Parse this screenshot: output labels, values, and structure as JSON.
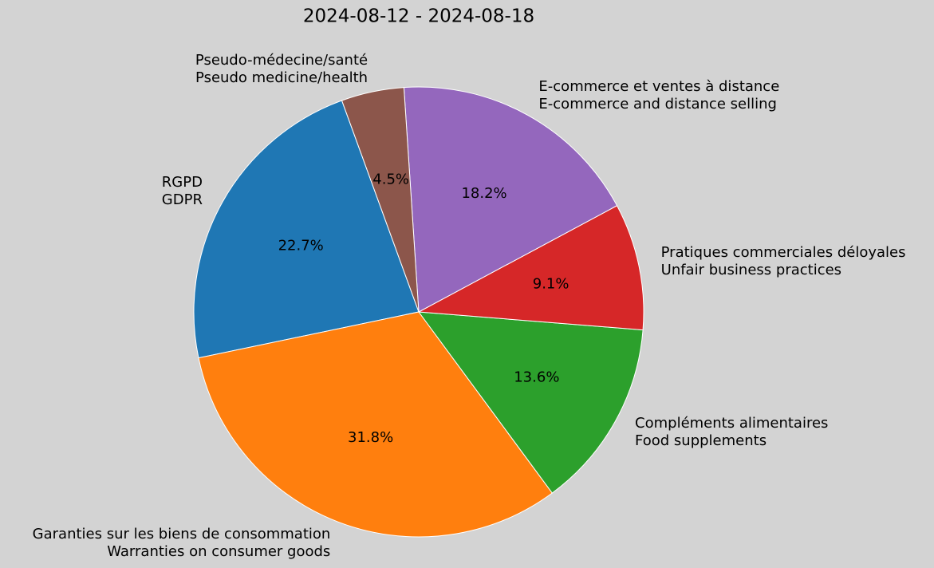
{
  "chart_data": {
    "type": "pie",
    "title": "2024-08-12 - 2024-08-18",
    "categories": [
      "RGPD\nGDPR",
      "Garanties sur les biens de consommation\nWarranties on consumer goods",
      "Compléments alimentaires\nFood supplements",
      "Pratiques commerciales déloyales\nUnfair business practices",
      "E-commerce et ventes à distance\nE-commerce and distance selling",
      "Pseudo-médecine/santé\nPseudo medicine/health"
    ],
    "values": [
      22.7,
      31.8,
      13.6,
      9.1,
      18.2,
      4.5
    ],
    "value_labels": [
      "22.7%",
      "31.8%",
      "13.6%",
      "9.1%",
      "18.2%",
      "4.5%"
    ],
    "colors": [
      "#1f77b4",
      "#ff7f0e",
      "#2ca02c",
      "#d62728",
      "#9467bd",
      "#8c564b"
    ]
  }
}
